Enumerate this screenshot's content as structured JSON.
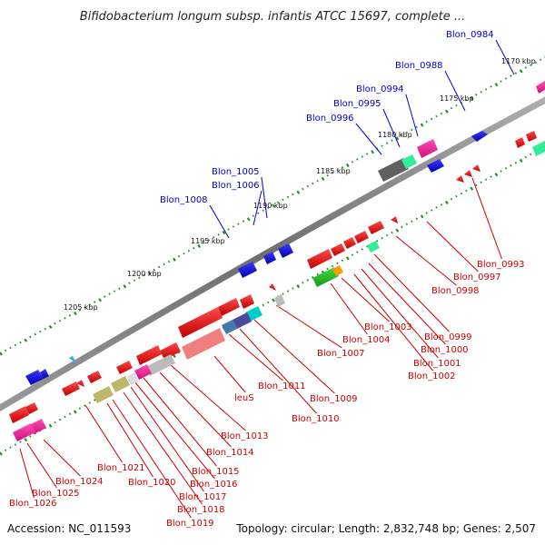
{
  "title": "Bifidobacterium longum subsp. infantis ATCC 15697, complete ...",
  "footer": {
    "accession": "Accession: NC_011593",
    "summary": "Topology: circular; Length: 2,832,748 bp; Genes: 2,507"
  },
  "colors": {
    "backbone": "#7a7a7a",
    "forward_label": "#0000cc",
    "reverse_label": "#cc0000",
    "tick": "#2e8b2e"
  },
  "scale_ticks": [
    "1170 kbp",
    "1175 kbp",
    "1180 kbp",
    "1185 kbp",
    "1190 kbp",
    "1195 kbp",
    "1200 kbp",
    "1205 kbp"
  ],
  "forward_genes": [
    "Blon_0984",
    "Blon_0988",
    "Blon_0994",
    "Blon_0995",
    "Blon_0996",
    "Blon_1005",
    "Blon_1006",
    "Blon_1008"
  ],
  "reverse_genes": [
    "Blon_0993",
    "Blon_0997",
    "Blon_0998",
    "Blon_0999",
    "Blon_1000",
    "Blon_1001",
    "Blon_1002",
    "Blon_1003",
    "Blon_1004",
    "Blon_1007",
    "Blon_1009",
    "Blon_1010",
    "Blon_1011",
    "leuS",
    "Blon_1013",
    "Blon_1014",
    "Blon_1015",
    "Blon_1016",
    "Blon_1017",
    "Blon_1018",
    "Blon_1019",
    "Blon_1020",
    "Blon_1021",
    "Blon_1024",
    "Blon_1025",
    "Blon_1026"
  ]
}
